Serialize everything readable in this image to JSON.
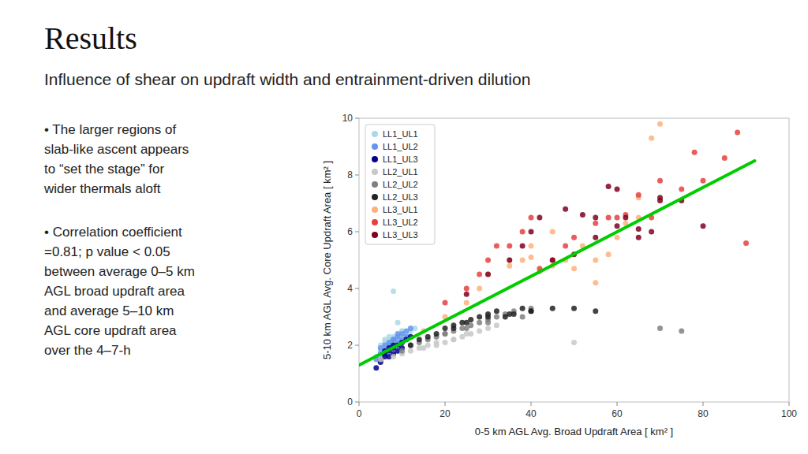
{
  "chart_data": {
    "type": "scatter",
    "title": "Results",
    "subtitle": "Influence of shear on updraft width and entrainment-driven dilution",
    "annotations": [
      "• The larger regions of\nslab-like ascent appears\nto “set the stage” for\nwider thermals aloft",
      "• Correlation coefficient\n=0.81; p value < 0.05\nbetween average 0–5 km\nAGL broad updraft area\nand average 5–10 km\nAGL core updraft area\nover the 4–7-h"
    ],
    "x_label": "0-5 km AGL Avg. Broad Updraft Area [ km² ]",
    "y_label": "5-10 km AGL Avg. Core Updraft Area [ km² ]",
    "xlim": [
      0,
      100
    ],
    "ylim": [
      0,
      10
    ],
    "xticks": [
      0,
      20,
      40,
      60,
      80,
      100
    ],
    "yticks": [
      0,
      2,
      4,
      6,
      8,
      10
    ],
    "grid": false,
    "legend": "upper left",
    "series": [
      {
        "name": "LL1_UL1",
        "color": "#add8e6",
        "x": [
          4,
          5,
          5,
          6,
          6,
          6,
          7,
          7,
          7,
          7,
          8,
          8,
          8,
          9,
          9,
          10,
          10,
          10,
          11,
          12,
          13,
          8,
          9,
          10
        ],
        "values": [
          1.6,
          1.8,
          2.0,
          1.9,
          2.1,
          2.2,
          2.0,
          2.1,
          2.2,
          2.3,
          2.1,
          2.2,
          2.3,
          2.2,
          2.3,
          2.4,
          2.5,
          2.2,
          2.4,
          2.5,
          2.6,
          3.9,
          2.8,
          2.5
        ]
      },
      {
        "name": "LL1_UL2",
        "color": "#6495ed",
        "x": [
          4,
          5,
          5,
          6,
          6,
          7,
          7,
          8,
          8,
          9,
          9,
          10,
          10,
          11,
          11,
          12,
          7,
          8,
          9
        ],
        "values": [
          1.5,
          1.7,
          1.9,
          1.8,
          2.0,
          1.9,
          2.1,
          2.0,
          2.2,
          2.1,
          2.3,
          2.2,
          2.4,
          2.3,
          2.5,
          2.6,
          2.0,
          2.2,
          2.4
        ]
      },
      {
        "name": "LL1_UL3",
        "color": "#00008b",
        "x": [
          4,
          5,
          5,
          6,
          6,
          6,
          7,
          7,
          7,
          8,
          8,
          8,
          9,
          9,
          10,
          10,
          11,
          12
        ],
        "values": [
          1.2,
          1.4,
          1.5,
          1.6,
          1.7,
          1.8,
          1.6,
          1.8,
          1.9,
          1.7,
          1.9,
          2.0,
          1.8,
          2.0,
          1.9,
          2.1,
          2.2,
          2.3
        ]
      },
      {
        "name": "LL2_UL1",
        "color": "#c8c8c8",
        "x": [
          5,
          8,
          10,
          12,
          14,
          16,
          18,
          20,
          22,
          24,
          26,
          28,
          30,
          32,
          15,
          18,
          22,
          25,
          50
        ],
        "values": [
          1.5,
          1.6,
          1.7,
          1.8,
          1.9,
          2.0,
          2.1,
          2.1,
          2.2,
          2.3,
          2.4,
          2.5,
          2.6,
          2.7,
          1.9,
          2.0,
          2.2,
          2.4,
          2.1
        ]
      },
      {
        "name": "LL2_UL2",
        "color": "#808080",
        "x": [
          10,
          12,
          14,
          16,
          18,
          20,
          22,
          24,
          26,
          28,
          30,
          32,
          34,
          36,
          38,
          40,
          20,
          25,
          30,
          70,
          75
        ],
        "values": [
          1.8,
          2.0,
          2.1,
          2.2,
          2.3,
          2.4,
          2.5,
          2.6,
          2.7,
          2.8,
          2.9,
          3.0,
          3.1,
          3.2,
          3.0,
          3.3,
          2.4,
          2.6,
          2.8,
          2.6,
          2.5
        ]
      },
      {
        "name": "LL2_UL3",
        "color": "#222222",
        "x": [
          12,
          14,
          16,
          18,
          20,
          22,
          24,
          26,
          28,
          30,
          32,
          34,
          36,
          38,
          40,
          22,
          25,
          30,
          35,
          40,
          45,
          50,
          55
        ],
        "values": [
          2.0,
          2.2,
          2.3,
          2.4,
          2.6,
          2.7,
          2.8,
          2.9,
          3.0,
          3.1,
          3.2,
          3.0,
          3.1,
          3.3,
          3.2,
          2.6,
          2.8,
          3.0,
          3.1,
          3.2,
          3.3,
          3.3,
          3.2
        ]
      },
      {
        "name": "LL3_UL1",
        "color": "#ffb07c",
        "x": [
          15,
          20,
          25,
          28,
          30,
          35,
          38,
          40,
          42,
          45,
          48,
          50,
          52,
          55,
          58,
          60,
          62,
          65,
          68,
          70,
          35,
          40,
          45,
          55,
          65
        ],
        "values": [
          2.5,
          3.0,
          3.5,
          4.0,
          4.5,
          4.8,
          5.0,
          5.1,
          4.6,
          4.8,
          5.0,
          4.7,
          5.5,
          5.0,
          5.2,
          5.8,
          6.3,
          7.2,
          9.3,
          9.8,
          5.0,
          5.5,
          6.0,
          4.2,
          6.5
        ]
      },
      {
        "name": "LL3_UL2",
        "color": "#e84040",
        "x": [
          20,
          25,
          28,
          30,
          32,
          35,
          38,
          40,
          42,
          45,
          48,
          50,
          55,
          58,
          60,
          62,
          65,
          68,
          70,
          75,
          78,
          80,
          85,
          88,
          90
        ],
        "values": [
          3.5,
          4.0,
          4.5,
          5.0,
          5.5,
          5.5,
          6.0,
          6.5,
          4.7,
          5.0,
          5.5,
          5.8,
          6.3,
          6.5,
          6.5,
          6.6,
          7.3,
          6.5,
          7.8,
          7.5,
          8.8,
          7.8,
          8.6,
          9.5,
          5.6
        ]
      },
      {
        "name": "LL3_UL3",
        "color": "#800020",
        "x": [
          25,
          30,
          35,
          38,
          40,
          42,
          45,
          48,
          50,
          52,
          55,
          58,
          60,
          62,
          65,
          68,
          70,
          75,
          80,
          55,
          60,
          65,
          70
        ],
        "values": [
          3.8,
          4.5,
          5.0,
          5.5,
          6.0,
          6.5,
          5.0,
          6.8,
          5.2,
          6.6,
          5.8,
          7.6,
          6.2,
          6.5,
          5.8,
          6.0,
          7.1,
          7.1,
          6.2,
          6.5,
          7.5,
          6.1,
          7.2
        ]
      },
      {
        "type": "line",
        "color": "#00cc00",
        "x": [
          0,
          92
        ],
        "values": [
          1.3,
          8.5
        ]
      }
    ]
  }
}
